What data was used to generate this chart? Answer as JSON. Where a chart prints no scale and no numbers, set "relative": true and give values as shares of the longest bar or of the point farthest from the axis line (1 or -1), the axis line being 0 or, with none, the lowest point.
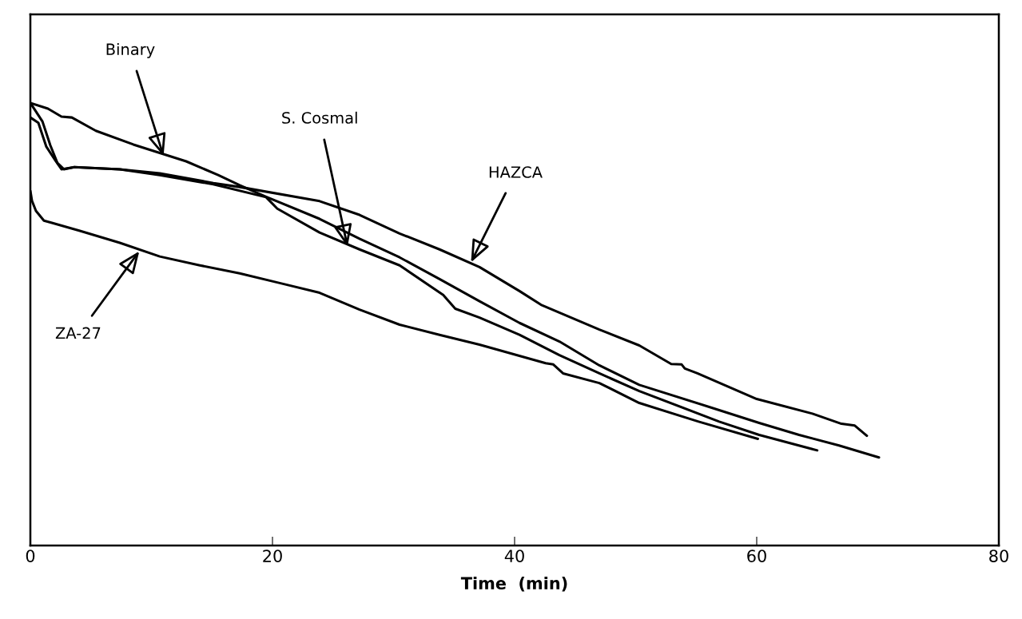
{
  "chart_data": {
    "type": "line",
    "relative": true,
    "xlabel": "Time  (min)",
    "xlim": [
      0,
      80
    ],
    "xticks": [
      0,
      20,
      40,
      60,
      80
    ],
    "grid": false,
    "marker": "none",
    "line_style": "solid",
    "series": [
      {
        "color": "#000000",
        "x": [
          0,
          1.0,
          1.65,
          2.24,
          2.77,
          3.63,
          7.39,
          10.69,
          15.12,
          17.29,
          23.89,
          27.19,
          30.5,
          33.8,
          37.1,
          40.4,
          42.18,
          47.0,
          50.3,
          52.94,
          53.8,
          54.06,
          55.1,
          60.0,
          64.6,
          67.0,
          68.1,
          69.1
        ],
        "values": [
          1.0,
          0.958,
          0.904,
          0.864,
          0.85,
          0.855,
          0.85,
          0.841,
          0.819,
          0.81,
          0.778,
          0.747,
          0.705,
          0.669,
          0.629,
          0.575,
          0.544,
          0.488,
          0.452,
          0.41,
          0.409,
          0.4,
          0.389,
          0.331,
          0.298,
          0.275,
          0.271,
          0.248
        ]
      },
      {
        "color": "#000000",
        "x": [
          0,
          1.45,
          2.57,
          3.43,
          5.41,
          8.51,
          12.87,
          15.51,
          17.29,
          19.47,
          23.89,
          27.19,
          30.5,
          33.8,
          37.1,
          40.4,
          43.7,
          47.0,
          50.3,
          56.9,
          60.2,
          63.5,
          66.8,
          70.1
        ],
        "values": [
          1.0,
          0.987,
          0.969,
          0.967,
          0.937,
          0.906,
          0.868,
          0.837,
          0.814,
          0.788,
          0.738,
          0.693,
          0.651,
          0.602,
          0.552,
          0.503,
          0.461,
          0.407,
          0.363,
          0.306,
          0.277,
          0.25,
          0.226,
          0.199
        ]
      },
      {
        "color": "#000000",
        "x": [
          0,
          0.66,
          1.32,
          2.11,
          2.57,
          3.63,
          7.39,
          10.69,
          15.12,
          19.47,
          20.4,
          23.89,
          27.19,
          30.5,
          34.1,
          35.1,
          37.1,
          40.4,
          43.7,
          47.0,
          50.3,
          56.9,
          60.2,
          65.0
        ],
        "values": [
          0.967,
          0.955,
          0.901,
          0.868,
          0.85,
          0.855,
          0.85,
          0.837,
          0.816,
          0.787,
          0.761,
          0.707,
          0.669,
          0.633,
          0.566,
          0.535,
          0.515,
          0.476,
          0.43,
          0.389,
          0.349,
          0.28,
          0.25,
          0.215
        ]
      },
      {
        "color": "#000000",
        "x": [
          0,
          0.13,
          0.46,
          1.12,
          1.78,
          4.09,
          7.39,
          10.69,
          14.0,
          17.29,
          20.6,
          23.89,
          27.19,
          30.5,
          33.8,
          37.1,
          42.57,
          43.2,
          44.0,
          47.0,
          50.3,
          55.2,
          60.1
        ],
        "values": [
          0.801,
          0.779,
          0.756,
          0.734,
          0.729,
          0.711,
          0.684,
          0.653,
          0.633,
          0.615,
          0.593,
          0.571,
          0.533,
          0.499,
          0.476,
          0.454,
          0.412,
          0.409,
          0.389,
          0.367,
          0.322,
          0.28,
          0.241
        ]
      }
    ],
    "annotations": [
      {
        "text": "Binary",
        "x": 11.0,
        "y": 0.88
      },
      {
        "text": "S. Cosmal",
        "x": 26.2,
        "y": 0.675
      },
      {
        "text": "HAZCA",
        "x": 36.4,
        "y": 0.64
      },
      {
        "text": "ZA-27",
        "x": 9.0,
        "y": 0.665
      }
    ]
  }
}
